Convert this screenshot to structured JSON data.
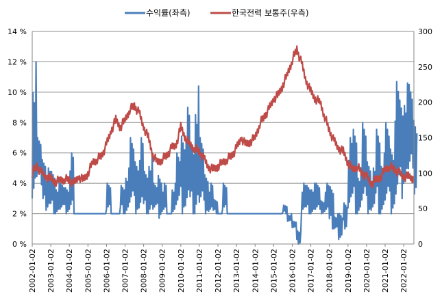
{
  "chart_data": {
    "type": "line",
    "title": "",
    "legend_position": "top",
    "legend": [
      "수익률(좌측)",
      "한국전력 보통주(우측)"
    ],
    "colors": {
      "returns": "#4a7ebb",
      "price": "#be4b48",
      "grid": "#8c8c8c"
    },
    "x_tick_labels": [
      "2002-01-02",
      "2003-01-02",
      "2004-01-02",
      "2005-01-02",
      "2006-01-02",
      "2007-01-02",
      "2008-01-02",
      "2009-01-02",
      "2010-01-02",
      "2011-01-02",
      "2012-01-02",
      "2013-01-02",
      "2014-01-02",
      "2015-01-02",
      "2016-01-02",
      "2017-01-02",
      "2018-01-02",
      "2019-01-02",
      "2020-01-02",
      "2021-01-02",
      "2022-01-02"
    ],
    "x_range_years": [
      2002.0,
      2022.55
    ],
    "y_left": {
      "label": "",
      "ylim": [
        0,
        14
      ],
      "ticks": [
        "0 %",
        "2 %",
        "4 %",
        "6 %",
        "8 %",
        "10 %",
        "12 %",
        "14 %"
      ]
    },
    "y_right": {
      "label": "",
      "ylim": [
        0,
        300
      ],
      "ticks": [
        "0",
        "50",
        "100",
        "150",
        "200",
        "250",
        "300"
      ]
    },
    "grid": true,
    "series": [
      {
        "name": "수익률(좌측)",
        "axis": "left",
        "start_year": 2002.0,
        "step_years": 0.25,
        "quarterly_range_percent": [
          [
            3,
            12
          ],
          [
            4,
            7
          ],
          [
            3,
            6
          ],
          [
            2,
            5
          ],
          [
            2,
            5
          ],
          [
            2,
            4
          ],
          [
            2,
            4
          ],
          [
            2,
            4
          ],
          [
            2,
            6
          ],
          [
            2,
            2
          ],
          [
            2,
            2
          ],
          [
            2,
            2
          ],
          [
            2,
            2
          ],
          [
            2,
            2
          ],
          [
            2,
            2
          ],
          [
            2,
            2
          ],
          [
            2,
            4
          ],
          [
            2,
            2
          ],
          [
            2,
            2
          ],
          [
            2,
            4
          ],
          [
            2,
            5
          ],
          [
            2,
            7
          ],
          [
            2,
            6
          ],
          [
            2,
            7
          ],
          [
            2,
            5
          ],
          [
            2,
            6
          ],
          [
            2,
            4
          ],
          [
            1.7,
            5
          ],
          [
            2,
            4
          ],
          [
            2,
            2
          ],
          [
            2,
            4
          ],
          [
            2,
            6
          ],
          [
            2,
            8
          ],
          [
            2,
            9
          ],
          [
            2,
            7
          ],
          [
            2,
            10.4
          ],
          [
            2,
            7
          ],
          [
            2,
            5
          ],
          [
            2,
            4
          ],
          [
            2,
            3
          ],
          [
            2,
            2
          ],
          [
            2,
            4
          ],
          [
            2,
            2
          ],
          [
            2,
            2
          ],
          [
            2,
            2
          ],
          [
            2,
            2
          ],
          [
            2,
            2
          ],
          [
            2,
            2
          ],
          [
            2,
            2
          ],
          [
            2,
            2
          ],
          [
            2,
            2
          ],
          [
            2,
            2
          ],
          [
            2,
            2
          ],
          [
            2,
            2
          ],
          [
            2,
            2.6
          ],
          [
            1.5,
            2
          ],
          [
            1,
            1.5
          ],
          [
            0,
            1
          ],
          [
            2,
            4
          ],
          [
            2,
            4
          ],
          [
            2,
            4
          ],
          [
            2,
            4
          ],
          [
            2,
            3
          ],
          [
            2,
            4
          ],
          [
            1,
            4
          ],
          [
            1,
            2
          ],
          [
            0,
            2
          ],
          [
            1,
            3
          ],
          [
            2,
            7
          ],
          [
            2,
            8
          ],
          [
            2,
            5
          ],
          [
            2,
            8
          ],
          [
            2,
            6
          ],
          [
            2,
            5
          ],
          [
            2,
            8
          ],
          [
            2,
            6
          ],
          [
            2,
            8
          ],
          [
            2,
            7
          ],
          [
            2,
            10.7
          ],
          [
            3,
            10
          ],
          [
            4,
            10.6
          ],
          [
            4,
            10.5
          ],
          [
            3.3,
            9
          ]
        ]
      },
      {
        "name": "한국전력 보통주(우측)",
        "axis": "right",
        "start_year": 2002.0,
        "step_years": 0.25,
        "values": [
          100,
          110,
          100,
          95,
          92,
          88,
          90,
          92,
          90,
          85,
          95,
          90,
          100,
          115,
          120,
          125,
          140,
          160,
          175,
          165,
          175,
          190,
          195,
          185,
          165,
          150,
          125,
          115,
          120,
          125,
          135,
          140,
          165,
          150,
          140,
          135,
          130,
          120,
          108,
          105,
          110,
          115,
          120,
          125,
          135,
          150,
          140,
          145,
          150,
          170,
          180,
          190,
          205,
          210,
          225,
          240,
          260,
          275,
          255,
          230,
          215,
          205,
          200,
          180,
          160,
          145,
          135,
          130,
          115,
          105,
          110,
          100,
          95,
          85,
          90,
          95,
          105,
          110,
          105,
          100,
          95,
          95,
          93
        ]
      }
    ]
  }
}
